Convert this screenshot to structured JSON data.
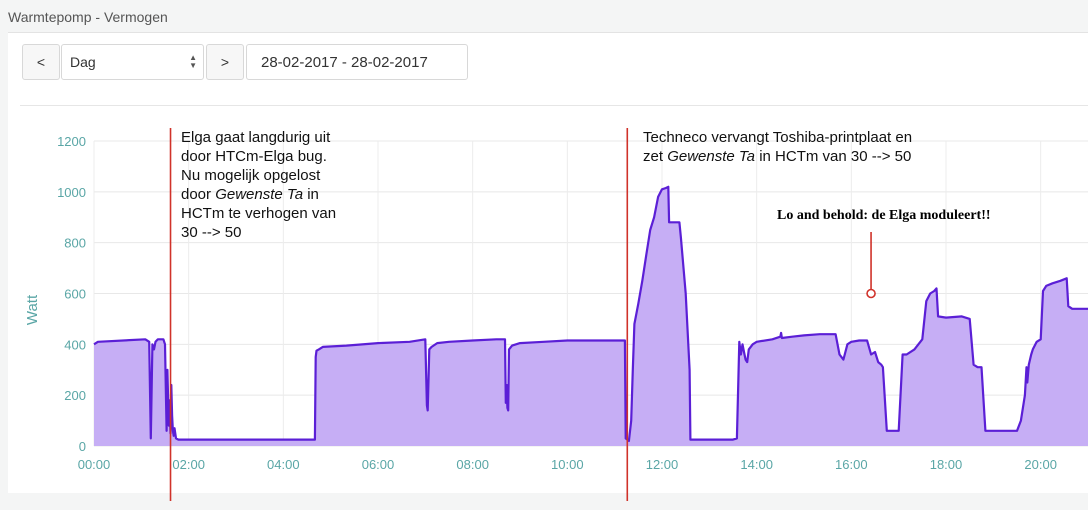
{
  "panel": {
    "title": "Warmtepomp - Vermogen",
    "prev_label": "<",
    "next_label": ">",
    "period_selected": "Dag",
    "date_range": "28-02-2017 - 28-02-2017"
  },
  "annotations": {
    "left_line1": "Elga gaat langdurig uit",
    "left_line2": "door HTCm-Elga bug.",
    "left_line3": "Nu mogelijk opgelost",
    "left_line4_a": "door ",
    "left_line4_b": "Gewenste Ta",
    "left_line4_c": " in",
    "left_line5": "HCTm te verhogen van",
    "left_line6": "30 --> 50",
    "right_line1": "Techneco vervangt Toshiba-printplaat en",
    "right_line2_a": "zet ",
    "right_line2_b": "Gewenste Ta",
    "right_line2_c": " in HCTm van 30 --> 50",
    "callout": "Lo and behold: de Elga moduleert!!"
  },
  "colors": {
    "fill": "#c6aef5",
    "line": "#5b1fd6",
    "marker": "#d0322a",
    "tick": "#5aa6a6"
  },
  "chart_data": {
    "type": "area",
    "title": "",
    "xlabel": "",
    "ylabel": "Watt",
    "ylim": [
      0,
      1200
    ],
    "xlim": [
      "00:00",
      "21:00"
    ],
    "x_ticks": [
      "00:00",
      "02:00",
      "04:00",
      "06:00",
      "08:00",
      "10:00",
      "12:00",
      "14:00",
      "16:00",
      "18:00",
      "20:00"
    ],
    "y_ticks": [
      0,
      200,
      400,
      600,
      800,
      1000,
      1200
    ],
    "grid": true,
    "legend": "none",
    "event_markers": [
      "01:37",
      "11:16"
    ],
    "callout_point": {
      "x": "16:25",
      "y": 600
    },
    "series": [
      {
        "points": [
          [
            "00:00",
            400
          ],
          [
            "00:05",
            410
          ],
          [
            "01:05",
            420
          ],
          [
            "01:10",
            410
          ],
          [
            "01:12",
            30
          ],
          [
            "01:14",
            400
          ],
          [
            "01:16",
            380
          ],
          [
            "01:18",
            410
          ],
          [
            "01:21",
            420
          ],
          [
            "01:28",
            420
          ],
          [
            "01:30",
            400
          ],
          [
            "01:32",
            60
          ],
          [
            "01:33",
            300
          ],
          [
            "01:34",
            170
          ],
          [
            "01:35",
            80
          ],
          [
            "01:36",
            180
          ],
          [
            "01:37",
            50
          ],
          [
            "01:38",
            240
          ],
          [
            "01:39",
            120
          ],
          [
            "01:40",
            60
          ],
          [
            "01:41",
            40
          ],
          [
            "01:42",
            70
          ],
          [
            "01:44",
            30
          ],
          [
            "01:47",
            25
          ],
          [
            "01:50",
            25
          ],
          [
            "02:00",
            25
          ],
          [
            "03:00",
            25
          ],
          [
            "04:40",
            25
          ],
          [
            "04:41",
            350
          ],
          [
            "04:42",
            375
          ],
          [
            "04:45",
            380
          ],
          [
            "04:50",
            390
          ],
          [
            "05:20",
            395
          ],
          [
            "06:00",
            405
          ],
          [
            "06:40",
            410
          ],
          [
            "07:00",
            420
          ],
          [
            "07:02",
            160
          ],
          [
            "07:03",
            140
          ],
          [
            "07:05",
            380
          ],
          [
            "07:08",
            390
          ],
          [
            "07:15",
            405
          ],
          [
            "07:30",
            410
          ],
          [
            "08:00",
            415
          ],
          [
            "08:30",
            420
          ],
          [
            "08:41",
            420
          ],
          [
            "08:42",
            170
          ],
          [
            "08:43",
            240
          ],
          [
            "08:44",
            150
          ],
          [
            "08:45",
            140
          ],
          [
            "08:46",
            380
          ],
          [
            "08:50",
            395
          ],
          [
            "09:00",
            405
          ],
          [
            "09:30",
            410
          ],
          [
            "10:00",
            415
          ],
          [
            "10:30",
            415
          ],
          [
            "11:00",
            415
          ],
          [
            "11:13",
            415
          ],
          [
            "11:14",
            30
          ],
          [
            "11:18",
            20
          ],
          [
            "11:21",
            100
          ],
          [
            "11:23",
            300
          ],
          [
            "11:25",
            480
          ],
          [
            "11:30",
            560
          ],
          [
            "11:35",
            650
          ],
          [
            "11:40",
            750
          ],
          [
            "11:45",
            850
          ],
          [
            "11:50",
            900
          ],
          [
            "11:55",
            980
          ],
          [
            "12:00",
            1010
          ],
          [
            "12:05",
            1015
          ],
          [
            "12:08",
            1020
          ],
          [
            "12:09",
            880
          ],
          [
            "12:22",
            880
          ],
          [
            "12:24",
            820
          ],
          [
            "12:30",
            600
          ],
          [
            "12:35",
            300
          ],
          [
            "12:36",
            25
          ],
          [
            "13:00",
            25
          ],
          [
            "13:30",
            25
          ],
          [
            "13:35",
            30
          ],
          [
            "13:38",
            410
          ],
          [
            "13:40",
            360
          ],
          [
            "13:42",
            400
          ],
          [
            "13:44",
            370
          ],
          [
            "13:46",
            340
          ],
          [
            "13:48",
            330
          ],
          [
            "13:50",
            380
          ],
          [
            "13:55",
            400
          ],
          [
            "14:00",
            410
          ],
          [
            "14:20",
            420
          ],
          [
            "14:30",
            430
          ],
          [
            "14:31",
            445
          ],
          [
            "14:32",
            425
          ],
          [
            "14:45",
            430
          ],
          [
            "15:00",
            435
          ],
          [
            "15:20",
            440
          ],
          [
            "15:30",
            440
          ],
          [
            "15:40",
            440
          ],
          [
            "15:45",
            360
          ],
          [
            "15:50",
            340
          ],
          [
            "15:55",
            400
          ],
          [
            "16:00",
            410
          ],
          [
            "16:10",
            415
          ],
          [
            "16:20",
            415
          ],
          [
            "16:25",
            360
          ],
          [
            "16:30",
            370
          ],
          [
            "16:34",
            330
          ],
          [
            "16:38",
            320
          ],
          [
            "16:40",
            310
          ],
          [
            "16:45",
            60
          ],
          [
            "16:50",
            60
          ],
          [
            "16:55",
            60
          ],
          [
            "17:00",
            60
          ],
          [
            "17:05",
            360
          ],
          [
            "17:10",
            360
          ],
          [
            "17:20",
            380
          ],
          [
            "17:30",
            420
          ],
          [
            "17:35",
            570
          ],
          [
            "17:40",
            600
          ],
          [
            "17:45",
            610
          ],
          [
            "17:48",
            620
          ],
          [
            "17:50",
            510
          ],
          [
            "18:00",
            505
          ],
          [
            "18:20",
            510
          ],
          [
            "18:30",
            500
          ],
          [
            "18:35",
            320
          ],
          [
            "18:40",
            310
          ],
          [
            "18:45",
            310
          ],
          [
            "18:50",
            60
          ],
          [
            "19:00",
            60
          ],
          [
            "19:20",
            60
          ],
          [
            "19:30",
            60
          ],
          [
            "19:35",
            100
          ],
          [
            "19:40",
            200
          ],
          [
            "19:42",
            310
          ],
          [
            "19:43",
            250
          ],
          [
            "19:45",
            320
          ],
          [
            "19:48",
            360
          ],
          [
            "19:50",
            380
          ],
          [
            "19:55",
            410
          ],
          [
            "20:00",
            420
          ],
          [
            "20:03",
            610
          ],
          [
            "20:07",
            630
          ],
          [
            "20:15",
            640
          ],
          [
            "20:25",
            650
          ],
          [
            "20:33",
            660
          ],
          [
            "20:35",
            550
          ],
          [
            "20:40",
            540
          ],
          [
            "21:00",
            540
          ]
        ]
      }
    ]
  }
}
